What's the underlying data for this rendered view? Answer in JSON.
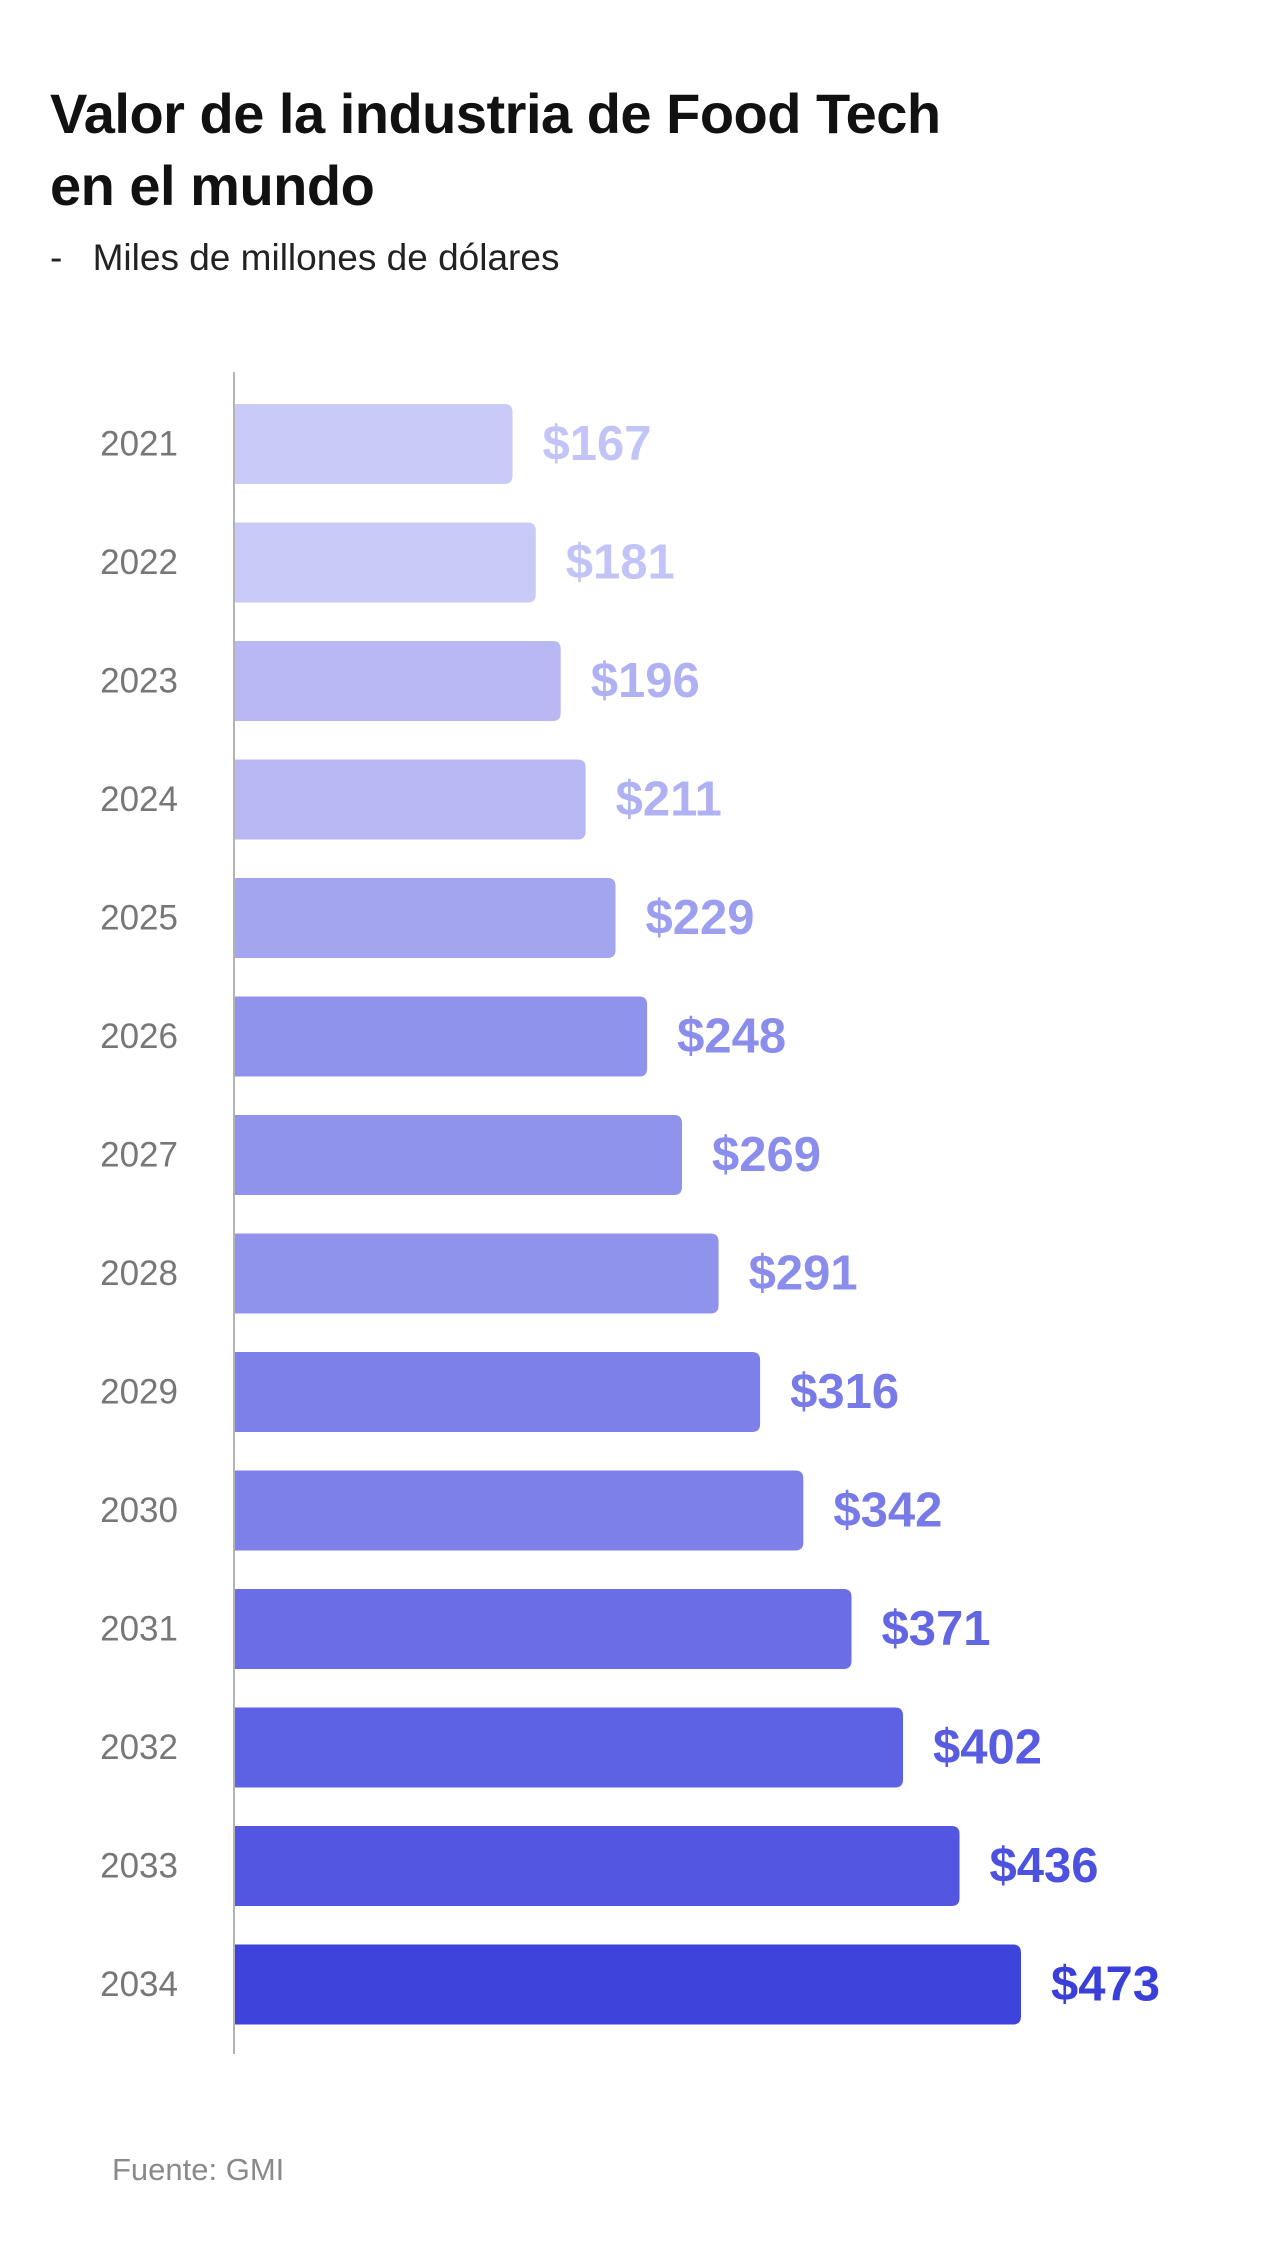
{
  "title_lines": [
    "Valor de la industria de Food Tech",
    "en el mundo"
  ],
  "subtitle": {
    "dash": "-",
    "text": "Miles de millones de dólares"
  },
  "source": "Fuente: GMI",
  "chart_data": {
    "type": "bar",
    "orientation": "horizontal",
    "title": "Valor de la industria de Food Tech en el mundo",
    "subtitle": "Miles de millones de dólares",
    "categories": [
      "2021",
      "2022",
      "2023",
      "2024",
      "2025",
      "2026",
      "2027",
      "2028",
      "2029",
      "2030",
      "2031",
      "2032",
      "2033",
      "2034"
    ],
    "values": [
      167,
      181,
      196,
      211,
      229,
      248,
      269,
      291,
      316,
      342,
      371,
      402,
      436,
      473
    ],
    "value_labels": [
      "$167",
      "$181",
      "$196",
      "$211",
      "$229",
      "$248",
      "$269",
      "$291",
      "$316",
      "$342",
      "$371",
      "$402",
      "$436",
      "$473"
    ],
    "bar_colors": [
      "#c9caf7",
      "#c9caf7",
      "#b7b8f4",
      "#b7b8f4",
      "#a3a5ef",
      "#9093ec",
      "#9093ec",
      "#9093ec",
      "#7d80e8",
      "#7d80e8",
      "#6a6de5",
      "#5d61e3",
      "#5256e1",
      "#3e43dc"
    ],
    "label_colors": [
      "#c2c3f6",
      "#c2c3f6",
      "#b0b1f3",
      "#b0b1f3",
      "#9c9eef",
      "#8a8deb",
      "#8a8deb",
      "#8a8deb",
      "#787be7",
      "#787be7",
      "#6366e3",
      "#585ce1",
      "#4d51df",
      "#3a3fda"
    ],
    "xlim": [
      0,
      473
    ],
    "grid": false,
    "legend": "none"
  }
}
